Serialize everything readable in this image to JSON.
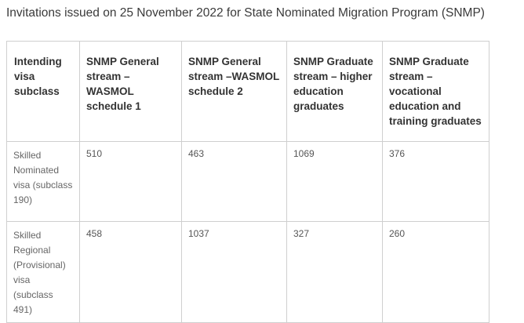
{
  "caption": "Invitations issued on 25 November 2022 for State Nominated Migration Program (SNMP)",
  "table": {
    "headers": [
      [
        "Intending",
        "visa",
        "subclass"
      ],
      [
        "SNMP General",
        "stream –",
        "WASMOL",
        "schedule 1"
      ],
      [
        "SNMP General",
        "stream –WASMOL",
        "schedule 2"
      ],
      [
        "SNMP Graduate",
        "stream – higher",
        "education",
        "graduates"
      ],
      [
        "SNMP Graduate",
        "stream –",
        "vocational",
        "education and",
        "training graduates"
      ]
    ],
    "rows": [
      {
        "label": [
          "Skilled",
          "Nominated",
          "visa (subclass",
          "190)"
        ],
        "values": [
          "510",
          "463",
          "1069",
          "376"
        ]
      },
      {
        "label": [
          "Skilled",
          "Regional",
          "(Provisional)",
          "visa",
          "(subclass 491)"
        ],
        "values": [
          "458",
          "1037",
          "327",
          "260"
        ]
      }
    ]
  }
}
